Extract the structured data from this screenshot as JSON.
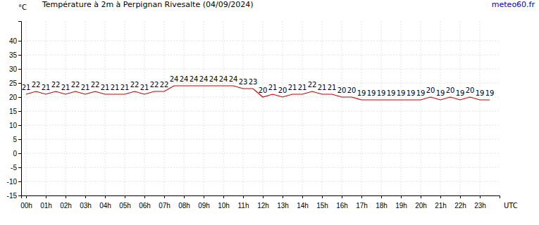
{
  "chart_data": {
    "type": "line",
    "title": "Température à 2m à Perpignan Rivesalte (04/09/2024)",
    "annotations": [
      "meteo60.fr"
    ],
    "y_label": "°C",
    "x_label": "UTC",
    "x": [
      0,
      0.5,
      1,
      1.5,
      2,
      2.5,
      3,
      3.5,
      4,
      4.5,
      5,
      5.5,
      6,
      6.5,
      7,
      7.5,
      8,
      8.5,
      9,
      9.5,
      10,
      10.5,
      11,
      11.5,
      12,
      12.5,
      13,
      13.5,
      14,
      14.5,
      15,
      15.5,
      16,
      16.5,
      17,
      17.5,
      18,
      18.5,
      19,
      19.5,
      20,
      20.5,
      21,
      21.5,
      22,
      22.5,
      23,
      23.5
    ],
    "values": [
      21,
      22,
      21,
      22,
      21,
      22,
      21,
      22,
      21,
      21,
      21,
      22,
      21,
      22,
      22,
      24,
      24,
      24,
      24,
      24,
      24,
      24,
      23,
      23,
      20,
      21,
      20,
      21,
      21,
      22,
      21,
      21,
      20,
      20,
      19,
      19,
      19,
      19,
      19,
      19,
      19,
      20,
      19,
      20,
      19,
      20,
      19,
      19
    ],
    "color": "#cc0000",
    "data_labels": true,
    "grid": true,
    "xlim": [
      -0.25,
      24
    ],
    "xticks": [
      {
        "value": 0,
        "label": "00h"
      },
      {
        "value": 1,
        "label": "01h"
      },
      {
        "value": 2,
        "label": "02h"
      },
      {
        "value": 3,
        "label": "03h"
      },
      {
        "value": 4,
        "label": "04h"
      },
      {
        "value": 5,
        "label": "05h"
      },
      {
        "value": 6,
        "label": "06h"
      },
      {
        "value": 7,
        "label": "07h"
      },
      {
        "value": 8,
        "label": "08h"
      },
      {
        "value": 9,
        "label": "09h"
      },
      {
        "value": 10,
        "label": "10h"
      },
      {
        "value": 11,
        "label": "11h"
      },
      {
        "value": 12,
        "label": "12h"
      },
      {
        "value": 13,
        "label": "13h"
      },
      {
        "value": 14,
        "label": "14h"
      },
      {
        "value": 15,
        "label": "15h"
      },
      {
        "value": 16,
        "label": "16h"
      },
      {
        "value": 17,
        "label": "17h"
      },
      {
        "value": 18,
        "label": "18h"
      },
      {
        "value": 19,
        "label": "19h"
      },
      {
        "value": 20,
        "label": "20h"
      },
      {
        "value": 21,
        "label": "21h"
      },
      {
        "value": 22,
        "label": "22h"
      },
      {
        "value": 23,
        "label": "23h"
      }
    ],
    "ylim": [
      -15,
      47
    ],
    "yticks": [
      -15,
      -10,
      -5,
      0,
      5,
      10,
      15,
      20,
      25,
      30,
      35,
      40
    ]
  }
}
